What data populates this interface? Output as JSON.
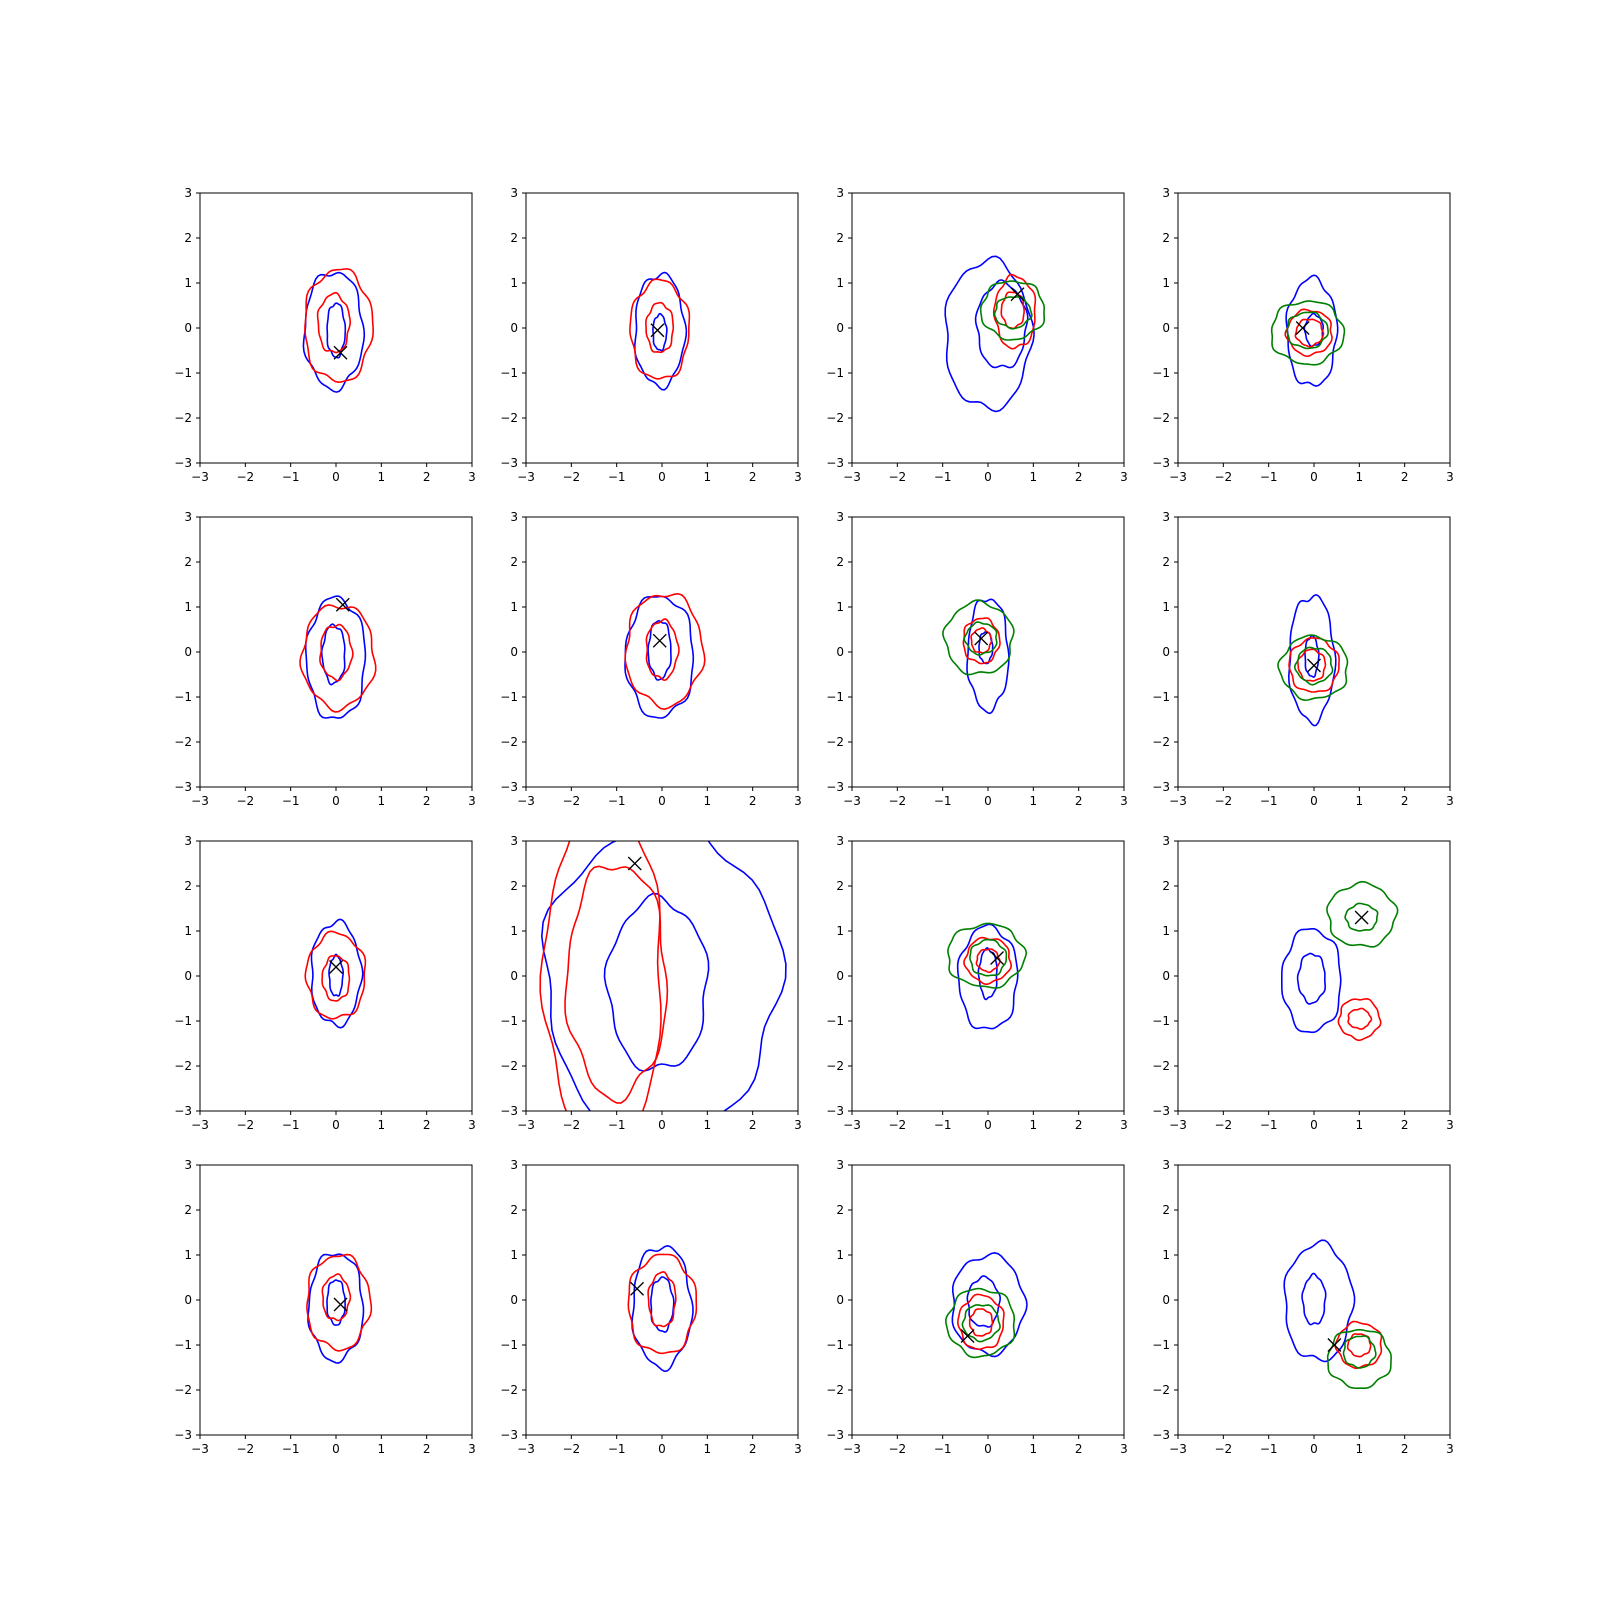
{
  "figure": {
    "rows": 4,
    "cols": 4
  },
  "colors": {
    "blue": "#0000ff",
    "red": "#ff0000",
    "green": "#008000",
    "marker": "#000000"
  },
  "chart_data": {
    "type": "contour",
    "grid": false,
    "xlim": [
      -3,
      3
    ],
    "ylim": [
      -3,
      3
    ],
    "xticks": [
      -3,
      -2,
      -1,
      0,
      1,
      2,
      3
    ],
    "yticks": [
      -3,
      -2,
      -1,
      0,
      1,
      2,
      3
    ],
    "tick_labels": [
      "−3",
      "−2",
      "−1",
      "0",
      "1",
      "2",
      "3"
    ],
    "panels": [
      {
        "marker": [
          0.1,
          -0.55
        ],
        "contours": [
          {
            "color": "blue",
            "cx": -0.05,
            "cy": -0.05,
            "rx": 0.65,
            "ry": 1.3
          },
          {
            "color": "blue",
            "cx": 0.0,
            "cy": -0.05,
            "rx": 0.2,
            "ry": 0.6
          },
          {
            "color": "red",
            "cx": 0.05,
            "cy": 0.05,
            "rx": 0.75,
            "ry": 1.25
          },
          {
            "color": "red",
            "cx": -0.05,
            "cy": 0.1,
            "rx": 0.35,
            "ry": 0.65
          }
        ]
      },
      {
        "marker": [
          -0.1,
          -0.05
        ],
        "contours": [
          {
            "color": "blue",
            "cx": -0.05,
            "cy": -0.05,
            "rx": 0.55,
            "ry": 1.25
          },
          {
            "color": "blue",
            "cx": -0.05,
            "cy": -0.1,
            "rx": 0.15,
            "ry": 0.4
          },
          {
            "color": "red",
            "cx": -0.05,
            "cy": -0.05,
            "rx": 0.65,
            "ry": 1.1
          },
          {
            "color": "red",
            "cx": -0.05,
            "cy": 0.0,
            "rx": 0.3,
            "ry": 0.55
          }
        ]
      },
      {
        "marker": [
          0.65,
          0.75
        ],
        "contours": [
          {
            "color": "blue",
            "cx": 0.0,
            "cy": -0.15,
            "rx": 0.95,
            "ry": 1.65
          },
          {
            "color": "blue",
            "cx": 0.3,
            "cy": 0.05,
            "rx": 0.55,
            "ry": 0.95
          },
          {
            "color": "red",
            "cx": 0.6,
            "cy": 0.35,
            "rx": 0.45,
            "ry": 0.8
          },
          {
            "color": "red",
            "cx": 0.55,
            "cy": 0.4,
            "rx": 0.25,
            "ry": 0.4
          },
          {
            "color": "green",
            "cx": 0.55,
            "cy": 0.4,
            "rx": 0.7,
            "ry": 0.65
          },
          {
            "color": "green",
            "cx": 0.55,
            "cy": 0.35,
            "rx": 0.4,
            "ry": 0.35
          }
        ]
      },
      {
        "marker": [
          -0.25,
          0.0
        ],
        "contours": [
          {
            "color": "blue",
            "cx": -0.05,
            "cy": -0.1,
            "rx": 0.55,
            "ry": 1.2
          },
          {
            "color": "blue",
            "cx": 0.0,
            "cy": -0.05,
            "rx": 0.2,
            "ry": 0.35
          },
          {
            "color": "red",
            "cx": -0.1,
            "cy": -0.1,
            "rx": 0.5,
            "ry": 0.5
          },
          {
            "color": "red",
            "cx": -0.1,
            "cy": -0.1,
            "rx": 0.3,
            "ry": 0.3
          },
          {
            "color": "green",
            "cx": -0.15,
            "cy": -0.1,
            "rx": 0.8,
            "ry": 0.7
          },
          {
            "color": "green",
            "cx": -0.15,
            "cy": -0.05,
            "rx": 0.45,
            "ry": 0.4
          }
        ]
      },
      {
        "marker": [
          0.15,
          1.05
        ],
        "contours": [
          {
            "color": "blue",
            "cx": 0.0,
            "cy": -0.15,
            "rx": 0.65,
            "ry": 1.35
          },
          {
            "color": "blue",
            "cx": -0.05,
            "cy": -0.05,
            "rx": 0.25,
            "ry": 0.65
          },
          {
            "color": "red",
            "cx": 0.05,
            "cy": -0.1,
            "rx": 0.8,
            "ry": 1.15
          },
          {
            "color": "red",
            "cx": 0.0,
            "cy": 0.0,
            "rx": 0.35,
            "ry": 0.6
          }
        ]
      },
      {
        "marker": [
          -0.05,
          0.25
        ],
        "contours": [
          {
            "color": "blue",
            "cx": -0.05,
            "cy": -0.1,
            "rx": 0.75,
            "ry": 1.35
          },
          {
            "color": "blue",
            "cx": -0.05,
            "cy": 0.05,
            "rx": 0.25,
            "ry": 0.65
          },
          {
            "color": "red",
            "cx": 0.05,
            "cy": 0.05,
            "rx": 0.85,
            "ry": 1.25
          },
          {
            "color": "red",
            "cx": 0.0,
            "cy": 0.05,
            "rx": 0.35,
            "ry": 0.65
          }
        ]
      },
      {
        "marker": [
          -0.15,
          0.3
        ],
        "contours": [
          {
            "color": "blue",
            "cx": 0.0,
            "cy": -0.05,
            "rx": 0.45,
            "ry": 1.25
          },
          {
            "color": "blue",
            "cx": -0.05,
            "cy": 0.1,
            "rx": 0.15,
            "ry": 0.35
          },
          {
            "color": "red",
            "cx": -0.15,
            "cy": 0.25,
            "rx": 0.4,
            "ry": 0.5
          },
          {
            "color": "red",
            "cx": -0.15,
            "cy": 0.25,
            "rx": 0.22,
            "ry": 0.27
          },
          {
            "color": "green",
            "cx": -0.2,
            "cy": 0.3,
            "rx": 0.75,
            "ry": 0.8
          },
          {
            "color": "green",
            "cx": -0.15,
            "cy": 0.3,
            "rx": 0.35,
            "ry": 0.35
          }
        ]
      },
      {
        "marker": [
          0.0,
          -0.3
        ],
        "contours": [
          {
            "color": "blue",
            "cx": -0.05,
            "cy": -0.15,
            "rx": 0.5,
            "ry": 1.4
          },
          {
            "color": "blue",
            "cx": -0.05,
            "cy": -0.1,
            "rx": 0.15,
            "ry": 0.45
          },
          {
            "color": "red",
            "cx": 0.0,
            "cy": -0.3,
            "rx": 0.55,
            "ry": 0.6
          },
          {
            "color": "red",
            "cx": -0.05,
            "cy": -0.3,
            "rx": 0.3,
            "ry": 0.35
          },
          {
            "color": "green",
            "cx": 0.0,
            "cy": -0.35,
            "rx": 0.75,
            "ry": 0.7
          },
          {
            "color": "green",
            "cx": 0.0,
            "cy": -0.3,
            "rx": 0.4,
            "ry": 0.4
          }
        ]
      },
      {
        "marker": [
          0.0,
          0.2
        ],
        "contours": [
          {
            "color": "blue",
            "cx": 0.0,
            "cy": 0.05,
            "rx": 0.55,
            "ry": 1.15
          },
          {
            "color": "blue",
            "cx": 0.0,
            "cy": 0.0,
            "rx": 0.15,
            "ry": 0.45
          },
          {
            "color": "red",
            "cx": 0.0,
            "cy": 0.0,
            "rx": 0.65,
            "ry": 0.95
          },
          {
            "color": "red",
            "cx": 0.0,
            "cy": -0.05,
            "rx": 0.3,
            "ry": 0.5
          }
        ]
      },
      {
        "marker": [
          -0.6,
          2.5
        ],
        "contours": [
          {
            "color": "blue",
            "cx": 0.0,
            "cy": -0.05,
            "rx": 2.6,
            "ry": 3.4
          },
          {
            "color": "blue",
            "cx": -0.1,
            "cy": -0.2,
            "rx": 1.1,
            "ry": 1.9
          },
          {
            "color": "red",
            "cx": -1.3,
            "cy": 0.0,
            "rx": 1.3,
            "ry": 3.8
          },
          {
            "color": "red",
            "cx": -1.0,
            "cy": -0.1,
            "rx": 1.1,
            "ry": 2.6
          }
        ]
      },
      {
        "marker": [
          0.2,
          0.4
        ],
        "contours": [
          {
            "color": "blue",
            "cx": 0.0,
            "cy": -0.05,
            "rx": 0.65,
            "ry": 1.15
          },
          {
            "color": "blue",
            "cx": 0.0,
            "cy": 0.05,
            "rx": 0.2,
            "ry": 0.55
          },
          {
            "color": "red",
            "cx": 0.0,
            "cy": 0.35,
            "rx": 0.5,
            "ry": 0.5
          },
          {
            "color": "red",
            "cx": 0.0,
            "cy": 0.35,
            "rx": 0.25,
            "ry": 0.25
          },
          {
            "color": "green",
            "cx": -0.05,
            "cy": 0.45,
            "rx": 0.85,
            "ry": 0.7
          },
          {
            "color": "green",
            "cx": 0.0,
            "cy": 0.4,
            "rx": 0.4,
            "ry": 0.4
          }
        ]
      },
      {
        "marker": [
          1.05,
          1.3
        ],
        "contours": [
          {
            "color": "blue",
            "cx": -0.05,
            "cy": -0.1,
            "rx": 0.65,
            "ry": 1.15
          },
          {
            "color": "blue",
            "cx": -0.05,
            "cy": -0.05,
            "rx": 0.3,
            "ry": 0.55
          },
          {
            "color": "red",
            "cx": 1.0,
            "cy": -0.95,
            "rx": 0.45,
            "ry": 0.45
          },
          {
            "color": "red",
            "cx": 1.0,
            "cy": -0.95,
            "rx": 0.25,
            "ry": 0.22
          },
          {
            "color": "green",
            "cx": 1.05,
            "cy": 1.35,
            "rx": 0.75,
            "ry": 0.7
          },
          {
            "color": "green",
            "cx": 1.05,
            "cy": 1.3,
            "rx": 0.35,
            "ry": 0.3
          }
        ]
      },
      {
        "marker": [
          0.1,
          -0.1
        ],
        "contours": [
          {
            "color": "blue",
            "cx": 0.0,
            "cy": -0.15,
            "rx": 0.6,
            "ry": 1.2
          },
          {
            "color": "blue",
            "cx": 0.0,
            "cy": -0.05,
            "rx": 0.2,
            "ry": 0.5
          },
          {
            "color": "red",
            "cx": 0.05,
            "cy": -0.05,
            "rx": 0.7,
            "ry": 1.05
          },
          {
            "color": "red",
            "cx": 0.0,
            "cy": 0.05,
            "rx": 0.3,
            "ry": 0.5
          }
        ]
      },
      {
        "marker": [
          -0.55,
          0.25
        ],
        "contours": [
          {
            "color": "blue",
            "cx": 0.0,
            "cy": -0.15,
            "rx": 0.65,
            "ry": 1.35
          },
          {
            "color": "blue",
            "cx": 0.0,
            "cy": -0.1,
            "rx": 0.25,
            "ry": 0.6
          },
          {
            "color": "red",
            "cx": 0.0,
            "cy": -0.1,
            "rx": 0.75,
            "ry": 1.1
          },
          {
            "color": "red",
            "cx": 0.0,
            "cy": 0.0,
            "rx": 0.3,
            "ry": 0.6
          }
        ]
      },
      {
        "marker": [
          -0.45,
          -0.8
        ],
        "contours": [
          {
            "color": "blue",
            "cx": 0.0,
            "cy": -0.1,
            "rx": 0.8,
            "ry": 1.1
          },
          {
            "color": "blue",
            "cx": -0.1,
            "cy": -0.05,
            "rx": 0.35,
            "ry": 0.55
          },
          {
            "color": "red",
            "cx": -0.15,
            "cy": -0.5,
            "rx": 0.5,
            "ry": 0.6
          },
          {
            "color": "red",
            "cx": -0.15,
            "cy": -0.5,
            "rx": 0.25,
            "ry": 0.3
          },
          {
            "color": "green",
            "cx": -0.15,
            "cy": -0.5,
            "rx": 0.75,
            "ry": 0.75
          },
          {
            "color": "green",
            "cx": -0.15,
            "cy": -0.5,
            "rx": 0.4,
            "ry": 0.4
          }
        ]
      },
      {
        "marker": [
          0.45,
          -1.0
        ],
        "contours": [
          {
            "color": "blue",
            "cx": 0.1,
            "cy": -0.05,
            "rx": 0.75,
            "ry": 1.3
          },
          {
            "color": "blue",
            "cx": 0.0,
            "cy": 0.0,
            "rx": 0.25,
            "ry": 0.55
          },
          {
            "color": "red",
            "cx": 1.0,
            "cy": -1.0,
            "rx": 0.5,
            "ry": 0.5
          },
          {
            "color": "red",
            "cx": 1.0,
            "cy": -1.0,
            "rx": 0.25,
            "ry": 0.25
          },
          {
            "color": "green",
            "cx": 1.0,
            "cy": -1.3,
            "rx": 0.7,
            "ry": 0.65
          },
          {
            "color": "green",
            "cx": 1.0,
            "cy": -1.15,
            "rx": 0.35,
            "ry": 0.35
          }
        ]
      }
    ]
  }
}
